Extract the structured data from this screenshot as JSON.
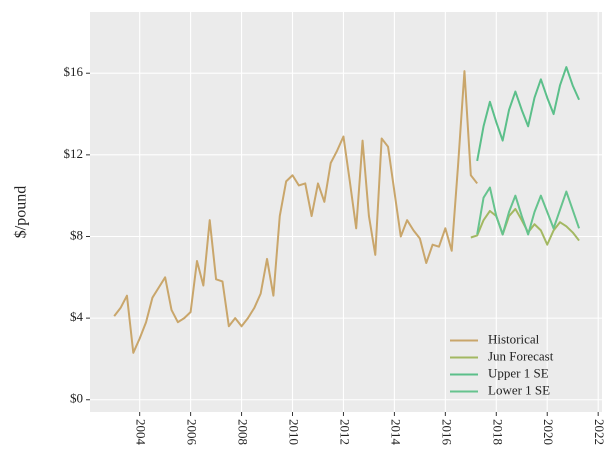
{
  "chart_data": {
    "type": "line",
    "y_label": "$/pound",
    "xlim": [
      2002.05,
      2022.15
    ],
    "xticks": [
      2004,
      2006,
      2008,
      2010,
      2012,
      2014,
      2016,
      2018,
      2020,
      2022
    ],
    "ylim": [
      -0.6,
      19
    ],
    "yticks": [
      {
        "value": 0,
        "label": "$0"
      },
      {
        "value": 4,
        "label": "$4"
      },
      {
        "value": 8,
        "label": "$8"
      },
      {
        "value": 12,
        "label": "$12"
      },
      {
        "value": 16,
        "label": "$16"
      }
    ],
    "grid": true,
    "legend_position": "bottom-right",
    "series": [
      {
        "name": "Historical",
        "color": "#c9a66b",
        "x": [
          2003,
          2003.25,
          2003.5,
          2003.75,
          2004,
          2004.25,
          2004.5,
          2004.75,
          2005,
          2005.25,
          2005.5,
          2005.75,
          2006,
          2006.25,
          2006.5,
          2006.75,
          2007,
          2007.25,
          2007.5,
          2007.75,
          2008,
          2008.25,
          2008.5,
          2008.75,
          2009,
          2009.25,
          2009.5,
          2009.75,
          2010,
          2010.25,
          2010.5,
          2010.75,
          2011,
          2011.25,
          2011.5,
          2011.75,
          2012,
          2012.25,
          2012.5,
          2012.75,
          2013,
          2013.25,
          2013.5,
          2013.75,
          2014,
          2014.25,
          2014.5,
          2014.75,
          2015,
          2015.25,
          2015.5,
          2015.75,
          2016,
          2016.25,
          2016.5,
          2016.75,
          2017,
          2017.25
        ],
        "values": [
          4.1,
          4.5,
          5.1,
          2.3,
          3.0,
          3.8,
          5.0,
          5.5,
          6.0,
          4.4,
          3.8,
          4.0,
          4.3,
          6.8,
          5.6,
          8.8,
          5.9,
          5.8,
          3.6,
          4.0,
          3.6,
          4.0,
          4.5,
          5.2,
          6.9,
          5.1,
          9.0,
          10.7,
          11.0,
          10.5,
          10.6,
          9.0,
          10.6,
          9.7,
          11.6,
          12.2,
          12.9,
          10.7,
          8.4,
          12.7,
          9.0,
          7.1,
          12.8,
          12.4,
          10.2,
          8.0,
          8.8,
          8.3,
          7.9,
          6.7,
          7.6,
          7.5,
          8.4,
          7.3,
          11.5,
          16.1,
          11.0,
          10.6
        ]
      },
      {
        "name": "Jun Forecast",
        "color": "#a3b862",
        "x": [
          2017,
          2017.25,
          2017.5,
          2017.75,
          2018,
          2018.25,
          2018.5,
          2018.75,
          2019,
          2019.25,
          2019.5,
          2019.75,
          2020,
          2020.25,
          2020.5,
          2020.75,
          2021,
          2021.25
        ],
        "values": [
          7.95,
          8.05,
          8.8,
          9.25,
          9.0,
          8.1,
          9.0,
          9.35,
          8.8,
          8.2,
          8.6,
          8.3,
          7.6,
          8.3,
          8.7,
          8.5,
          8.2,
          7.8
        ]
      },
      {
        "name": "Upper 1 SE",
        "color": "#5bbf8a",
        "x": [
          2017.25,
          2017.5,
          2017.75,
          2018,
          2018.25,
          2018.5,
          2018.75,
          2019,
          2019.25,
          2019.5,
          2019.75,
          2020,
          2020.25,
          2020.5,
          2020.75,
          2021,
          2021.25
        ],
        "values": [
          11.7,
          13.4,
          14.6,
          13.6,
          12.7,
          14.2,
          15.1,
          14.2,
          13.4,
          14.8,
          15.7,
          14.8,
          14.0,
          15.4,
          16.3,
          15.4,
          14.7
        ]
      },
      {
        "name": "Lower 1 SE",
        "color": "#66c38e",
        "x": [
          2017.25,
          2017.5,
          2017.75,
          2018,
          2018.25,
          2018.5,
          2018.75,
          2019,
          2019.25,
          2019.5,
          2019.75,
          2020,
          2020.25,
          2020.5,
          2020.75,
          2021,
          2021.25
        ],
        "values": [
          8.1,
          9.9,
          10.4,
          9.0,
          8.1,
          9.2,
          10.0,
          9.0,
          8.1,
          9.2,
          10.0,
          9.2,
          8.4,
          9.3,
          10.2,
          9.3,
          8.4
        ]
      }
    ]
  }
}
